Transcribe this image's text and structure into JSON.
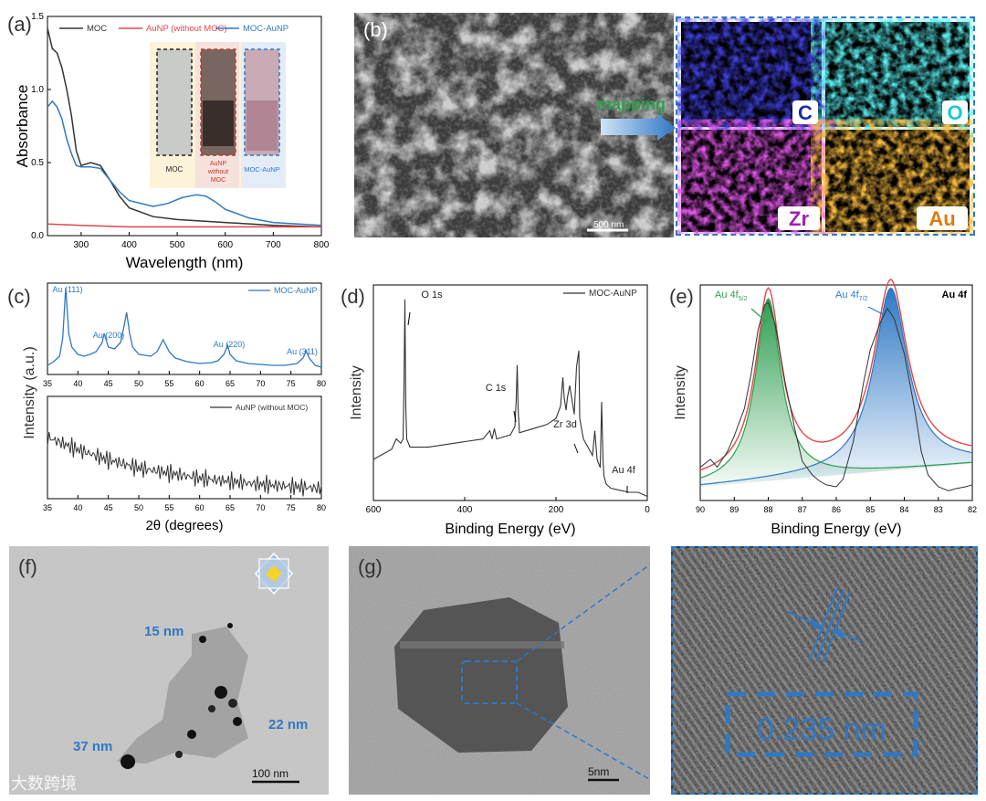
{
  "colors": {
    "moc": "#333333",
    "aunp": "#e04848",
    "moc_aunp": "#2f78c4",
    "accent": "#2f78c4",
    "green": "#2e9e4f"
  },
  "panels": {
    "a": {
      "letter": "(a)",
      "inset_labels": [
        "MOC",
        "AuNP\nwithout\nMOC",
        "MOC-AuNP"
      ]
    },
    "b": {
      "letter": "(b)",
      "mapping": "mapping",
      "scale": "500 nm",
      "elements": [
        "C",
        "O",
        "Zr",
        "Au"
      ]
    },
    "c": {
      "letter": "(c)",
      "peaks": [
        "Au (111)",
        "Au (200)",
        "Au (220)",
        "Au (311)"
      ]
    },
    "d": {
      "letter": "(d)",
      "peaks": [
        "O 1s",
        "C 1s",
        "Zr 3d",
        "Au 4f"
      ]
    },
    "e": {
      "letter": "(e)",
      "title": "Au 4f"
    },
    "f": {
      "letter": "(f)",
      "sizes": [
        "15 nm",
        "22 nm",
        "37 nm"
      ],
      "scale": "100 nm"
    },
    "g": {
      "letter": "(g)",
      "scale": "5nm",
      "spacing": "0.235 nm"
    }
  },
  "watermark": "大数跨境",
  "chart_data": [
    {
      "panel": "a",
      "type": "line",
      "xlabel": "Wavelength (nm)",
      "ylabel": "Absorbance",
      "xlim": [
        230,
        800
      ],
      "ylim": [
        0,
        1.5
      ],
      "xticks": [
        300,
        400,
        500,
        600,
        700,
        800
      ],
      "yticks": [
        0.0,
        0.5,
        1.0,
        1.5
      ],
      "legend_position": "top",
      "grid": false,
      "series": [
        {
          "name": "MOC",
          "x": [
            230,
            240,
            250,
            260,
            270,
            280,
            290,
            300,
            320,
            340,
            360,
            380,
            400,
            450,
            500,
            550,
            600,
            700,
            800
          ],
          "y": [
            1.42,
            1.28,
            1.25,
            1.15,
            1.0,
            0.82,
            0.58,
            0.48,
            0.5,
            0.48,
            0.38,
            0.27,
            0.19,
            0.13,
            0.11,
            0.1,
            0.09,
            0.07,
            0.06
          ]
        },
        {
          "name": "AuNP (without MOC)",
          "x": [
            230,
            300,
            400,
            500,
            600,
            700,
            800
          ],
          "y": [
            0.08,
            0.07,
            0.06,
            0.06,
            0.06,
            0.06,
            0.06
          ]
        },
        {
          "name": "MOC-AuNP",
          "x": [
            230,
            240,
            250,
            260,
            270,
            280,
            290,
            300,
            320,
            340,
            360,
            380,
            400,
            450,
            480,
            510,
            540,
            560,
            580,
            600,
            650,
            700,
            800
          ],
          "y": [
            0.88,
            0.92,
            0.88,
            0.8,
            0.66,
            0.56,
            0.48,
            0.47,
            0.47,
            0.46,
            0.38,
            0.3,
            0.24,
            0.2,
            0.22,
            0.26,
            0.28,
            0.27,
            0.23,
            0.18,
            0.12,
            0.09,
            0.07
          ]
        }
      ]
    },
    {
      "panel": "c-top",
      "type": "line",
      "xlabel": "",
      "ylabel": "Intensity (a.u.)",
      "xlim": [
        35,
        80
      ],
      "xticks": [
        35,
        40,
        45,
        50,
        55,
        60,
        65,
        70,
        75,
        80
      ],
      "series": [
        {
          "name": "MOC-AuNP",
          "x": [
            35,
            36,
            37,
            37.5,
            38,
            38.5,
            39,
            40,
            41,
            42,
            43,
            44,
            44.3,
            45,
            46,
            47,
            47.5,
            48,
            48.5,
            49,
            50,
            52,
            53,
            54,
            55,
            56,
            58,
            60,
            62,
            63,
            64,
            64.6,
            65,
            66,
            68,
            70,
            72,
            74,
            76,
            77,
            77.5,
            78,
            79,
            80
          ],
          "y": [
            0.1,
            0.14,
            0.2,
            0.4,
            0.95,
            0.45,
            0.3,
            0.22,
            0.2,
            0.22,
            0.25,
            0.35,
            0.45,
            0.3,
            0.28,
            0.35,
            0.5,
            0.68,
            0.45,
            0.3,
            0.22,
            0.2,
            0.25,
            0.38,
            0.25,
            0.18,
            0.14,
            0.12,
            0.13,
            0.15,
            0.22,
            0.32,
            0.22,
            0.15,
            0.12,
            0.11,
            0.1,
            0.1,
            0.12,
            0.18,
            0.26,
            0.18,
            0.1,
            0.08
          ]
        }
      ]
    },
    {
      "panel": "c-bottom",
      "type": "line",
      "xlabel": "2θ (degrees)",
      "ylabel": "",
      "xlim": [
        35,
        80
      ],
      "xticks": [
        35,
        40,
        45,
        50,
        55,
        60,
        65,
        70,
        75,
        80
      ],
      "series": [
        {
          "name": "AuNP (without MOC)",
          "x": [
            35,
            40,
            45,
            50,
            55,
            60,
            65,
            70,
            75,
            80
          ],
          "y": [
            0.6,
            0.48,
            0.38,
            0.3,
            0.25,
            0.2,
            0.17,
            0.14,
            0.12,
            0.1
          ]
        }
      ]
    },
    {
      "panel": "d",
      "type": "line",
      "xlabel": "Binding Energy (eV)",
      "ylabel": "Intensity",
      "xlim": [
        600,
        0
      ],
      "xticks": [
        600,
        400,
        200,
        0
      ],
      "series": [
        {
          "name": "MOC-AuNP",
          "x": [
            600,
            560,
            550,
            540,
            535,
            533,
            531,
            529,
            527,
            520,
            480,
            450,
            420,
            360,
            345,
            340,
            335,
            330,
            300,
            290,
            287,
            285,
            283,
            280,
            250,
            220,
            200,
            190,
            185,
            182,
            178,
            175,
            170,
            160,
            155,
            150,
            148,
            140,
            130,
            120,
            115,
            110,
            103,
            100,
            97,
            95,
            90,
            80,
            60,
            40,
            20,
            0
          ],
          "y": [
            0.2,
            0.25,
            0.3,
            0.28,
            0.3,
            0.55,
            0.98,
            0.45,
            0.3,
            0.26,
            0.26,
            0.27,
            0.28,
            0.3,
            0.34,
            0.3,
            0.35,
            0.3,
            0.32,
            0.36,
            0.5,
            0.66,
            0.45,
            0.33,
            0.35,
            0.37,
            0.4,
            0.46,
            0.6,
            0.5,
            0.44,
            0.5,
            0.56,
            0.42,
            0.65,
            0.73,
            0.4,
            0.3,
            0.26,
            0.22,
            0.34,
            0.2,
            0.16,
            0.48,
            0.2,
            0.12,
            0.08,
            0.06,
            0.05,
            0.04,
            0.04,
            0.02
          ]
        }
      ]
    },
    {
      "panel": "e",
      "type": "area",
      "xlabel": "Binding Energy (eV)",
      "ylabel": "Intensity",
      "xlim": [
        90,
        82
      ],
      "xticks": [
        90,
        89,
        88,
        87,
        86,
        85,
        84,
        83,
        82
      ],
      "peak_centers": [
        88.0,
        84.4
      ],
      "series": [
        {
          "name": "raw",
          "x": [
            90,
            89.7,
            89.5,
            89.2,
            89,
            88.7,
            88.5,
            88.3,
            88.1,
            88,
            87.8,
            87.5,
            87.2,
            87,
            86.7,
            86.5,
            86.3,
            86,
            85.8,
            85.5,
            85.2,
            85,
            84.7,
            84.5,
            84.3,
            84,
            83.7,
            83.5,
            83.3,
            83,
            82.7,
            82.5,
            82.2,
            82
          ],
          "y": [
            0.12,
            0.16,
            0.12,
            0.2,
            0.28,
            0.42,
            0.6,
            0.82,
            0.95,
            0.96,
            0.85,
            0.55,
            0.3,
            0.15,
            0.08,
            0.05,
            0.03,
            0.02,
            0.06,
            0.25,
            0.55,
            0.72,
            0.86,
            0.93,
            0.88,
            0.7,
            0.42,
            0.2,
            0.08,
            0.02,
            0.0,
            0.01,
            0.02,
            0.03
          ]
        },
        {
          "name": "fit-4f5/2",
          "peak_center": 88.0
        },
        {
          "name": "fit-4f7/2",
          "peak_center": 84.4
        },
        {
          "name": "envelope"
        }
      ]
    }
  ]
}
